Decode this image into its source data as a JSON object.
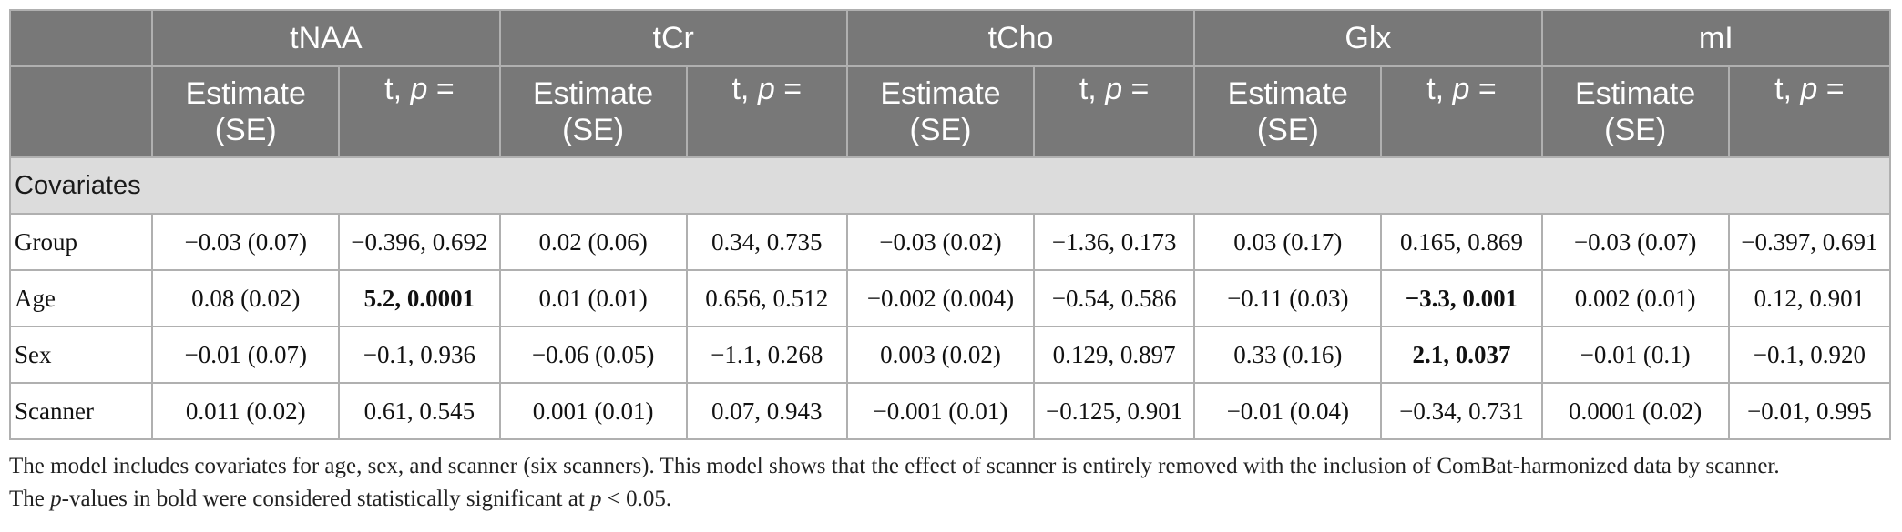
{
  "table": {
    "metabolites": [
      "tNAA",
      "tCr",
      "tCho",
      "Glx",
      "mI"
    ],
    "sub_headers": {
      "estimate_line1": "Estimate",
      "estimate_line2": "(SE)",
      "t_label": "t, ",
      "p_label": "p",
      "p_eq": " ="
    },
    "section_label": "Covariates",
    "rows": [
      {
        "label": "Group",
        "cells": [
          {
            "estimate": "−0.03 (0.07)",
            "tp": "−0.396, 0.692",
            "bold": false
          },
          {
            "estimate": "0.02 (0.06)",
            "tp": "0.34, 0.735",
            "bold": false
          },
          {
            "estimate": "−0.03 (0.02)",
            "tp": "−1.36, 0.173",
            "bold": false
          },
          {
            "estimate": "0.03 (0.17)",
            "tp": "0.165, 0.869",
            "bold": false
          },
          {
            "estimate": "−0.03 (0.07)",
            "tp": "−0.397, 0.691",
            "bold": false
          }
        ]
      },
      {
        "label": "Age",
        "cells": [
          {
            "estimate": "0.08 (0.02)",
            "tp": "5.2, 0.0001",
            "bold": true
          },
          {
            "estimate": "0.01 (0.01)",
            "tp": "0.656, 0.512",
            "bold": false
          },
          {
            "estimate": "−0.002 (0.004)",
            "tp": "−0.54, 0.586",
            "bold": false
          },
          {
            "estimate": "−0.11 (0.03)",
            "tp": "−3.3, 0.001",
            "bold": true
          },
          {
            "estimate": "0.002 (0.01)",
            "tp": "0.12, 0.901",
            "bold": false
          }
        ]
      },
      {
        "label": "Sex",
        "cells": [
          {
            "estimate": "−0.01 (0.07)",
            "tp": "−0.1, 0.936",
            "bold": false
          },
          {
            "estimate": "−0.06 (0.05)",
            "tp": "−1.1, 0.268",
            "bold": false
          },
          {
            "estimate": "0.003 (0.02)",
            "tp": "0.129, 0.897",
            "bold": false
          },
          {
            "estimate": "0.33 (0.16)",
            "tp": "2.1, 0.037",
            "bold": true
          },
          {
            "estimate": "−0.01 (0.1)",
            "tp": "−0.1, 0.920",
            "bold": false
          }
        ]
      },
      {
        "label": "Scanner",
        "cells": [
          {
            "estimate": "0.011 (0.02)",
            "tp": "0.61, 0.545",
            "bold": false
          },
          {
            "estimate": "0.001 (0.01)",
            "tp": "0.07, 0.943",
            "bold": false
          },
          {
            "estimate": "−0.001 (0.01)",
            "tp": "−0.125, 0.901",
            "bold": false
          },
          {
            "estimate": "−0.01 (0.04)",
            "tp": "−0.34, 0.731",
            "bold": false
          },
          {
            "estimate": "0.0001 (0.02)",
            "tp": "−0.01, 0.995",
            "bold": false
          }
        ]
      }
    ]
  },
  "note": {
    "line1": "The model includes covariates for age, sex, and scanner (six scanners). This model shows that the effect of scanner is entirely removed with the inclusion of ComBat-harmonized data by scanner.",
    "line2_pre": "The ",
    "line2_p1": "p",
    "line2_mid": "-values in bold were considered statistically significant at ",
    "line2_p2": "p",
    "line2_end": " < 0.05."
  },
  "colors": {
    "header_bg": "#787878",
    "header_text": "#ffffff",
    "section_bg": "#dcdcdc",
    "border": "#b0b0b0"
  }
}
